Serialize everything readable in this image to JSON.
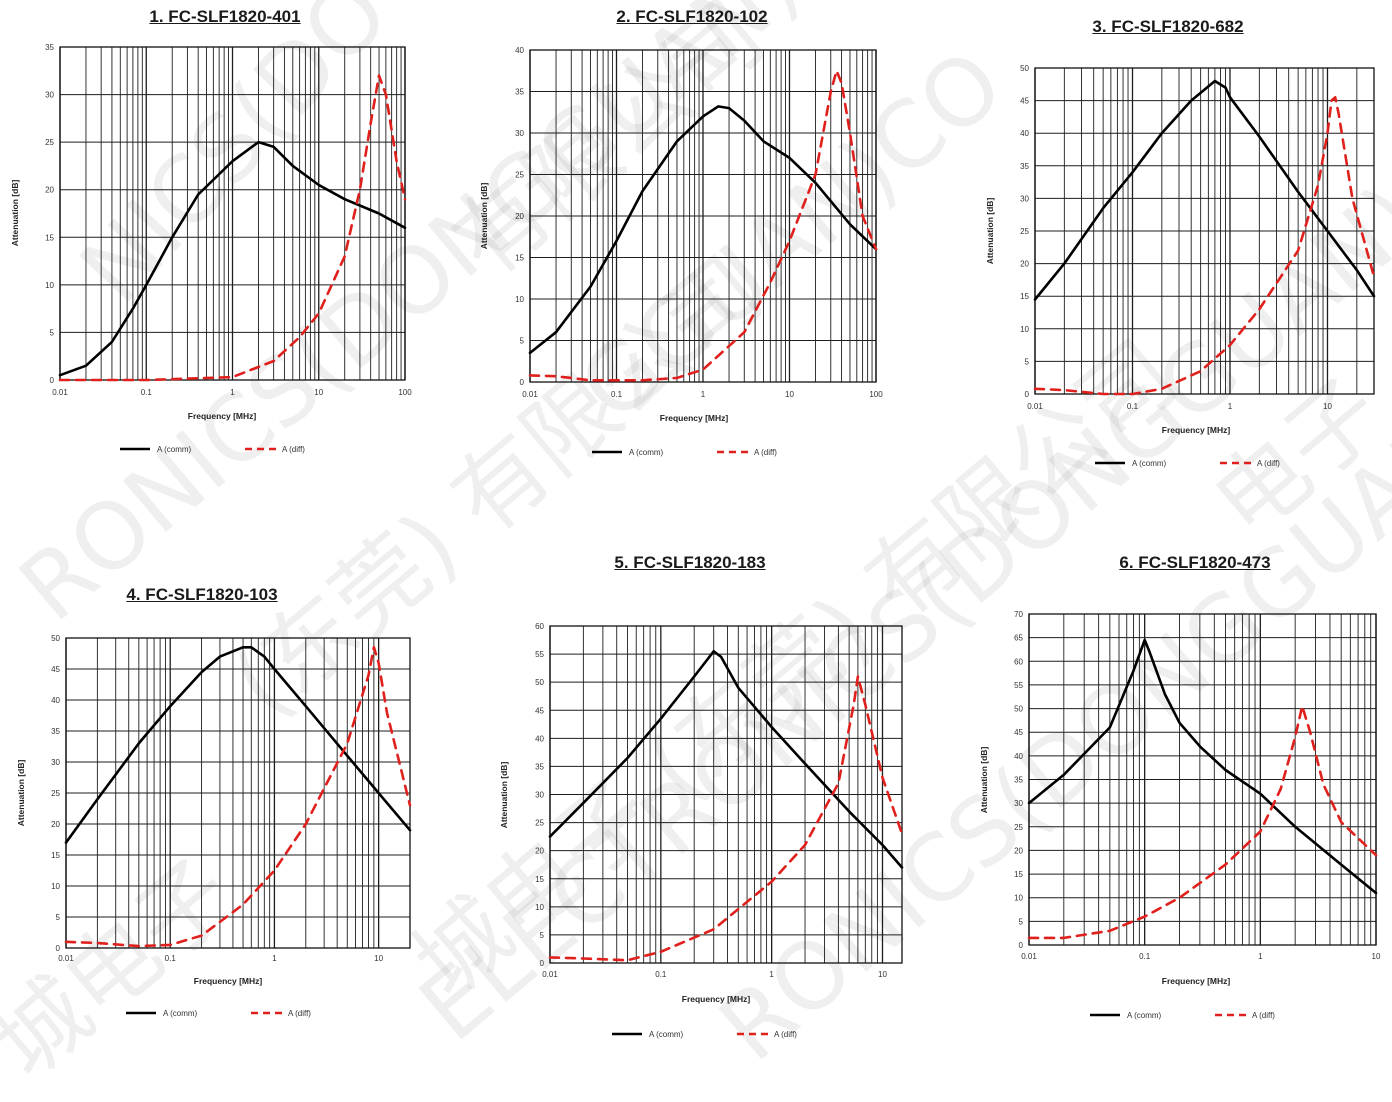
{
  "watermarks": [
    "NICS(DO",
    "有限公司",
    "(东莞) 有限公司",
    "GGUAN)CO",
    "RONICS(DONGGUAN)CO",
    "ELECTRONICS(DONGGUAN)CO",
    "城电子",
    "RONICS(DONGGUAN)C",
    "城电子 (东莞) 有限公司",
    "电子"
  ],
  "colors": {
    "comm": "#000000",
    "diff": "#e0201c",
    "grid": "#1e1e1e"
  },
  "chart_data": [
    {
      "type": "line",
      "title": "1. FC-SLF1820-401",
      "xlabel": "Frequency [MHz]",
      "ylabel": "Attenuation [dB]",
      "xscale": "log",
      "xlim": [
        0.01,
        100
      ],
      "ylim": [
        0,
        35
      ],
      "xticks": [
        "0.01",
        "0.1",
        "1",
        "10",
        "100"
      ],
      "yticks": [
        "0",
        "5",
        "10",
        "15",
        "20",
        "25",
        "30",
        "35"
      ],
      "legend": [
        "A (comm)",
        "A (diff)"
      ],
      "series": [
        {
          "name": "A (comm)",
          "style": "solid",
          "points": [
            [
              0.01,
              0.5
            ],
            [
              0.02,
              1.5
            ],
            [
              0.04,
              4
            ],
            [
              0.07,
              7.5
            ],
            [
              0.1,
              10
            ],
            [
              0.2,
              15
            ],
            [
              0.4,
              19.5
            ],
            [
              1,
              23
            ],
            [
              2,
              25
            ],
            [
              3,
              24.5
            ],
            [
              5,
              22.5
            ],
            [
              10,
              20.5
            ],
            [
              20,
              19
            ],
            [
              50,
              17.5
            ],
            [
              100,
              16
            ]
          ]
        },
        {
          "name": "A (diff)",
          "style": "dashed",
          "points": [
            [
              0.01,
              0
            ],
            [
              0.1,
              0
            ],
            [
              1,
              0.3
            ],
            [
              3,
              2
            ],
            [
              6,
              4.5
            ],
            [
              10,
              7
            ],
            [
              20,
              13
            ],
            [
              30,
              20
            ],
            [
              40,
              27
            ],
            [
              50,
              32
            ],
            [
              60,
              30
            ],
            [
              80,
              23
            ],
            [
              100,
              19
            ]
          ]
        }
      ]
    },
    {
      "type": "line",
      "title": "2. FC-SLF1820-102",
      "xlabel": "Frequency [MHz]",
      "ylabel": "Attenuation [dB]",
      "xscale": "log",
      "xlim": [
        0.01,
        100
      ],
      "ylim": [
        0,
        40
      ],
      "xticks": [
        "0.01",
        "0.1",
        "1",
        "10",
        "100"
      ],
      "yticks": [
        "0",
        "5",
        "10",
        "15",
        "20",
        "25",
        "30",
        "35",
        "40"
      ],
      "legend": [
        "A (comm)",
        "A (diff)"
      ],
      "series": [
        {
          "name": "A (comm)",
          "style": "solid",
          "points": [
            [
              0.01,
              3.5
            ],
            [
              0.02,
              6
            ],
            [
              0.05,
              11.5
            ],
            [
              0.1,
              17
            ],
            [
              0.2,
              23
            ],
            [
              0.5,
              29
            ],
            [
              1,
              32
            ],
            [
              1.5,
              33.2
            ],
            [
              2,
              33
            ],
            [
              3,
              31.5
            ],
            [
              5,
              29
            ],
            [
              10,
              27
            ],
            [
              20,
              24
            ],
            [
              50,
              19
            ],
            [
              100,
              16
            ]
          ]
        },
        {
          "name": "A (diff)",
          "style": "dashed",
          "points": [
            [
              0.01,
              0.8
            ],
            [
              0.02,
              0.7
            ],
            [
              0.05,
              0.2
            ],
            [
              0.2,
              0.2
            ],
            [
              0.5,
              0.5
            ],
            [
              1,
              1.5
            ],
            [
              3,
              6
            ],
            [
              6,
              12
            ],
            [
              10,
              17
            ],
            [
              20,
              25
            ],
            [
              30,
              35
            ],
            [
              35,
              37.5
            ],
            [
              40,
              36
            ],
            [
              50,
              30
            ],
            [
              70,
              20
            ],
            [
              100,
              16
            ]
          ]
        }
      ]
    },
    {
      "type": "line",
      "title": "3. FC-SLF1820-682",
      "xlabel": "Frequency [MHz]",
      "ylabel": "Attenuation [dB]",
      "xscale": "log",
      "xlim": [
        0.01,
        30
      ],
      "ylim": [
        0,
        50
      ],
      "xticks": [
        "0.01",
        "0.1",
        "1",
        "10"
      ],
      "yticks": [
        "0",
        "5",
        "10",
        "15",
        "20",
        "25",
        "30",
        "35",
        "40",
        "45",
        "50"
      ],
      "legend": [
        "A (comm)",
        "A (diff)"
      ],
      "series": [
        {
          "name": "A (comm)",
          "style": "solid",
          "points": [
            [
              0.01,
              14.5
            ],
            [
              0.02,
              20
            ],
            [
              0.05,
              28.5
            ],
            [
              0.1,
              34
            ],
            [
              0.2,
              40
            ],
            [
              0.4,
              45
            ],
            [
              0.7,
              48
            ],
            [
              0.9,
              47
            ],
            [
              1,
              45.5
            ],
            [
              2,
              39.5
            ],
            [
              5,
              31
            ],
            [
              10,
              25
            ],
            [
              20,
              19
            ],
            [
              30,
              15
            ]
          ]
        },
        {
          "name": "A (diff)",
          "style": "dashed",
          "points": [
            [
              0.01,
              0.8
            ],
            [
              0.02,
              0.6
            ],
            [
              0.05,
              0
            ],
            [
              0.1,
              0
            ],
            [
              0.2,
              0.8
            ],
            [
              0.5,
              3.5
            ],
            [
              1,
              7.5
            ],
            [
              2,
              13
            ],
            [
              5,
              22
            ],
            [
              8,
              32
            ],
            [
              10,
              40
            ],
            [
              11,
              45
            ],
            [
              12,
              45.5
            ],
            [
              13,
              43
            ],
            [
              18,
              30
            ],
            [
              30,
              18
            ]
          ]
        }
      ]
    },
    {
      "type": "line",
      "title": "4. FC-SLF1820-103",
      "xlabel": "Frequency [MHz]",
      "ylabel": "Attenuation [dB]",
      "xscale": "log",
      "xlim": [
        0.01,
        20
      ],
      "ylim": [
        0,
        50
      ],
      "xticks": [
        "0.01",
        "0.1",
        "1",
        "10"
      ],
      "yticks": [
        "0",
        "5",
        "10",
        "15",
        "20",
        "25",
        "30",
        "35",
        "40",
        "45",
        "50"
      ],
      "legend": [
        "A (comm)",
        "A (diff)"
      ],
      "series": [
        {
          "name": "A (comm)",
          "style": "solid",
          "points": [
            [
              0.01,
              17
            ],
            [
              0.02,
              24
            ],
            [
              0.05,
              33
            ],
            [
              0.1,
              39
            ],
            [
              0.2,
              44.5
            ],
            [
              0.3,
              47
            ],
            [
              0.5,
              48.5
            ],
            [
              0.6,
              48.5
            ],
            [
              0.8,
              47
            ],
            [
              1,
              45
            ],
            [
              2,
              39
            ],
            [
              5,
              31
            ],
            [
              10,
              25
            ],
            [
              20,
              19
            ]
          ]
        },
        {
          "name": "A (diff)",
          "style": "dashed",
          "points": [
            [
              0.01,
              1
            ],
            [
              0.02,
              0.8
            ],
            [
              0.05,
              0.3
            ],
            [
              0.1,
              0.5
            ],
            [
              0.2,
              2
            ],
            [
              0.5,
              7
            ],
            [
              1,
              12.5
            ],
            [
              2,
              20
            ],
            [
              5,
              33
            ],
            [
              8,
              44
            ],
            [
              9,
              48.5
            ],
            [
              10,
              46
            ],
            [
              12,
              38
            ],
            [
              20,
              23
            ]
          ]
        }
      ]
    },
    {
      "type": "line",
      "title": "5. FC-SLF1820-183",
      "xlabel": "Frequency [MHz]",
      "ylabel": "Attenuation [dB]",
      "xscale": "log",
      "xlim": [
        0.01,
        15
      ],
      "ylim": [
        0,
        60
      ],
      "xticks": [
        "0.01",
        "0.1",
        "1",
        "10"
      ],
      "yticks": [
        "0",
        "5",
        "10",
        "15",
        "20",
        "25",
        "30",
        "35",
        "40",
        "45",
        "50",
        "55",
        "60"
      ],
      "legend": [
        "A (comm)",
        "A (diff)"
      ],
      "series": [
        {
          "name": "A (comm)",
          "style": "solid",
          "points": [
            [
              0.01,
              22.5
            ],
            [
              0.02,
              28.5
            ],
            [
              0.05,
              36.5
            ],
            [
              0.1,
              43.5
            ],
            [
              0.2,
              51
            ],
            [
              0.3,
              55.5
            ],
            [
              0.35,
              54.5
            ],
            [
              0.5,
              49
            ],
            [
              1,
              42
            ],
            [
              2,
              35.5
            ],
            [
              5,
              27
            ],
            [
              10,
              21
            ],
            [
              15,
              17
            ]
          ]
        },
        {
          "name": "A (diff)",
          "style": "dashed",
          "points": [
            [
              0.01,
              1
            ],
            [
              0.02,
              0.8
            ],
            [
              0.05,
              0.5
            ],
            [
              0.1,
              2
            ],
            [
              0.3,
              6
            ],
            [
              1,
              14.5
            ],
            [
              2,
              21
            ],
            [
              4,
              32
            ],
            [
              5.5,
              46
            ],
            [
              6,
              51
            ],
            [
              7,
              46
            ],
            [
              10,
              33
            ],
            [
              15,
              23
            ]
          ]
        }
      ]
    },
    {
      "type": "line",
      "title": "6. FC-SLF1820-473",
      "xlabel": "Frequency [MHz]",
      "ylabel": "Attenuation [dB]",
      "xscale": "log",
      "xlim": [
        0.01,
        10
      ],
      "ylim": [
        0,
        70
      ],
      "xticks": [
        "0.01",
        "0.1",
        "1",
        "10"
      ],
      "yticks": [
        "0",
        "5",
        "10",
        "15",
        "20",
        "25",
        "30",
        "35",
        "40",
        "45",
        "50",
        "55",
        "60",
        "65",
        "70"
      ],
      "legend": [
        "A (comm)",
        "A (diff)"
      ],
      "series": [
        {
          "name": "A (comm)",
          "style": "solid",
          "points": [
            [
              0.01,
              30
            ],
            [
              0.02,
              36
            ],
            [
              0.05,
              46
            ],
            [
              0.08,
              58
            ],
            [
              0.1,
              64.5
            ],
            [
              0.11,
              62
            ],
            [
              0.15,
              53
            ],
            [
              0.2,
              47
            ],
            [
              0.3,
              42
            ],
            [
              0.5,
              37
            ],
            [
              1,
              32
            ],
            [
              2,
              25
            ],
            [
              5,
              17
            ],
            [
              10,
              11
            ]
          ]
        },
        {
          "name": "A (diff)",
          "style": "dashed",
          "points": [
            [
              0.01,
              1.5
            ],
            [
              0.02,
              1.5
            ],
            [
              0.05,
              3
            ],
            [
              0.1,
              6
            ],
            [
              0.2,
              10
            ],
            [
              0.5,
              17
            ],
            [
              1,
              24
            ],
            [
              1.5,
              33
            ],
            [
              2,
              44
            ],
            [
              2.3,
              50.5
            ],
            [
              2.7,
              45
            ],
            [
              3.5,
              34
            ],
            [
              5,
              26
            ],
            [
              10,
              19
            ]
          ]
        }
      ]
    }
  ]
}
